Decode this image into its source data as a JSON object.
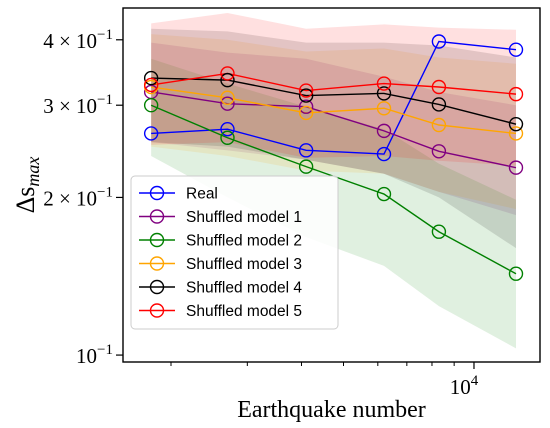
{
  "chart_data": {
    "type": "line",
    "title": "",
    "xlabel": "Earthquake number",
    "ylabel": "Δs",
    "ylabel_subscript": "max",
    "xscale": "log",
    "yscale": "log",
    "xlim": [
      1550,
      14200
    ],
    "ylim": [
      0.097,
      0.46
    ],
    "grid": false,
    "legend_placement": "lower-left",
    "x": [
      1800,
      2700,
      4100,
      6200,
      8300,
      12500
    ],
    "x_ticks": [
      {
        "value": 10000,
        "base": "10",
        "exp": "4"
      }
    ],
    "y_ticks": [
      {
        "value": 0.4,
        "mant": "4 × 10",
        "exp": "−1"
      },
      {
        "value": 0.3,
        "mant": "3 × 10",
        "exp": "−1"
      },
      {
        "value": 0.2,
        "mant": "2 × 10",
        "exp": "−1"
      },
      {
        "value": 0.1,
        "mant": "10",
        "exp": "−1"
      }
    ],
    "series": [
      {
        "name": "Real",
        "color": "#0000ff",
        "values": [
          0.265,
          0.27,
          0.246,
          0.242,
          0.397,
          0.383
        ],
        "band_lo": null,
        "band_hi": null
      },
      {
        "name": "Shuffled model 1",
        "color": "#800080",
        "values": [
          0.318,
          0.302,
          0.298,
          0.268,
          0.245,
          0.228
        ],
        "band_lo": [
          0.255,
          0.246,
          0.236,
          0.222,
          0.205,
          0.185
        ],
        "band_hi": [
          0.395,
          0.378,
          0.368,
          0.34,
          0.318,
          0.3
        ]
      },
      {
        "name": "Shuffled model 2",
        "color": "#008000",
        "values": [
          0.3,
          0.26,
          0.229,
          0.203,
          0.172,
          0.143
        ],
        "band_lo": [
          0.24,
          0.2,
          0.168,
          0.148,
          0.124,
          0.103
        ],
        "band_hi": [
          0.368,
          0.33,
          0.298,
          0.27,
          0.232,
          0.198
        ]
      },
      {
        "name": "Shuffled model 3",
        "color": "#ffa500",
        "values": [
          0.325,
          0.31,
          0.29,
          0.296,
          0.275,
          0.265
        ],
        "band_lo": [
          0.25,
          0.24,
          0.225,
          0.222,
          0.205,
          0.19
        ],
        "band_hi": [
          0.41,
          0.4,
          0.38,
          0.385,
          0.37,
          0.36
        ]
      },
      {
        "name": "Shuffled model 4",
        "color": "#000000",
        "values": [
          0.338,
          0.335,
          0.313,
          0.316,
          0.301,
          0.276
        ],
        "band_lo": [
          0.255,
          0.25,
          0.236,
          0.222,
          0.2,
          0.16
        ],
        "band_hi": [
          0.42,
          0.415,
          0.395,
          0.395,
          0.39,
          0.37
        ]
      },
      {
        "name": "Shuffled model 5",
        "color": "#ff0000",
        "values": [
          0.328,
          0.345,
          0.32,
          0.33,
          0.325,
          0.315
        ],
        "band_lo": [
          0.252,
          0.255,
          0.238,
          0.24,
          0.235,
          0.23
        ],
        "band_hi": [
          0.43,
          0.45,
          0.42,
          0.428,
          0.422,
          0.418
        ]
      }
    ]
  }
}
